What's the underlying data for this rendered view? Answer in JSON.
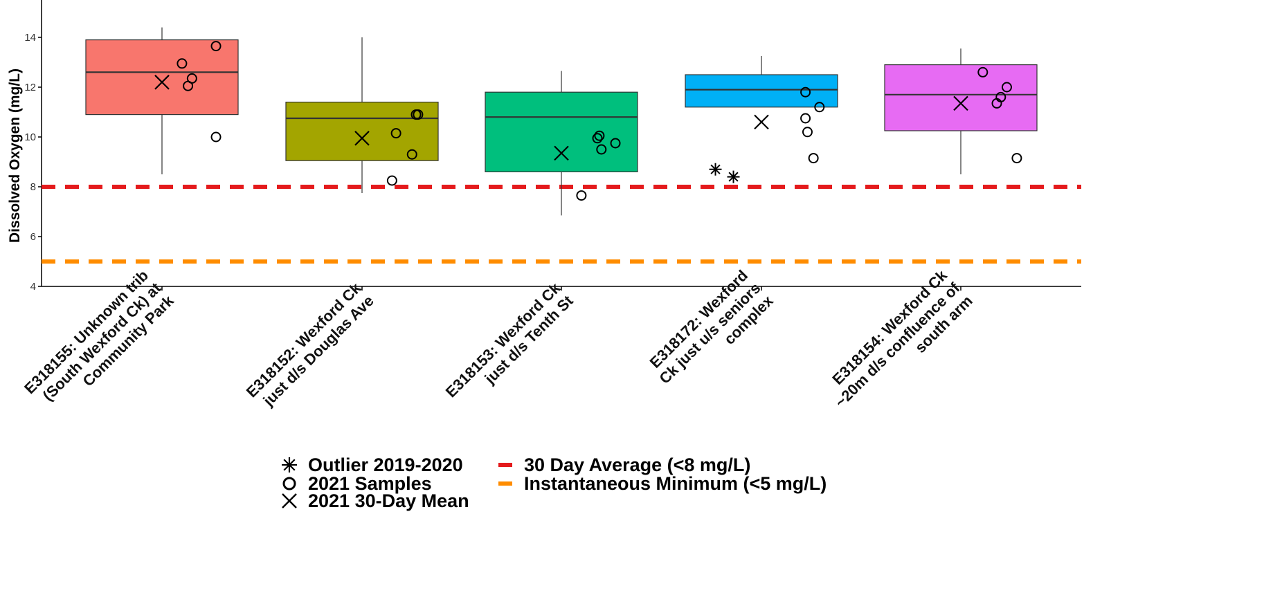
{
  "chart_data": {
    "type": "box",
    "ylabel": "Dissolved Oxygen (mg/L)",
    "ylim": [
      4,
      15.5
    ],
    "yticks": [
      4,
      6,
      8,
      10,
      12,
      14
    ],
    "grid": false,
    "legend_placement": "bottom",
    "categories": [
      "E318155: Unknown trib (South Wexford Ck) at Community Park",
      "E318152: Wexford Ck just d/s Douglas Ave",
      "E318153: Wexford Ck just d/s Tenth St",
      "E318172: Wexford Ck just u/s seniors complex",
      "E318154: Wexford Ck ~20m d/s confluence of south arm"
    ],
    "category_label_lines": [
      [
        "E318155: Unknown trib",
        "(South Wexford Ck) at",
        "Community Park"
      ],
      [
        "E318152: Wexford Ck",
        "just d/s Douglas Ave"
      ],
      [
        "E318153: Wexford Ck",
        "just d/s Tenth St"
      ],
      [
        "E318172: Wexford",
        "Ck just u/s seniors",
        "complex"
      ],
      [
        "E318154: Wexford Ck",
        "~20m d/s confluence of",
        "south arm"
      ]
    ],
    "boxes": [
      {
        "whisker_low": 8.5,
        "q1": 10.9,
        "median": 12.6,
        "q3": 13.9,
        "whisker_high": 14.4,
        "color": "#F8766D"
      },
      {
        "whisker_low": 7.75,
        "q1": 9.05,
        "median": 10.75,
        "q3": 11.4,
        "whisker_high": 14.0,
        "color": "#A3A500"
      },
      {
        "whisker_low": 6.85,
        "q1": 8.6,
        "median": 10.8,
        "q3": 11.8,
        "whisker_high": 12.65,
        "color": "#00BF7D"
      },
      {
        "whisker_low": 11.2,
        "q1": 11.2,
        "median": 11.9,
        "q3": 12.5,
        "whisker_high": 13.25,
        "color": "#00B0F6"
      },
      {
        "whisker_low": 8.5,
        "q1": 10.25,
        "median": 11.7,
        "q3": 12.9,
        "whisker_high": 13.55,
        "color": "#E76BF3"
      }
    ],
    "samples_2021": [
      [
        [
          0.27,
          13.65
        ],
        [
          0.1,
          12.95
        ],
        [
          0.15,
          12.35
        ],
        [
          0.13,
          12.05
        ],
        [
          0.27,
          10.0
        ]
      ],
      [
        [
          0.27,
          10.9
        ],
        [
          0.28,
          10.9
        ],
        [
          0.17,
          10.15
        ],
        [
          0.25,
          9.3
        ],
        [
          0.15,
          8.25
        ]
      ],
      [
        [
          0.19,
          10.05
        ],
        [
          0.18,
          9.95
        ],
        [
          0.2,
          9.5
        ],
        [
          0.27,
          9.75
        ],
        [
          0.1,
          7.65
        ]
      ],
      [
        [
          0.22,
          11.8
        ],
        [
          0.29,
          11.2
        ],
        [
          0.22,
          10.75
        ],
        [
          0.23,
          10.2
        ],
        [
          0.26,
          9.15
        ]
      ],
      [
        [
          0.11,
          12.6
        ],
        [
          0.23,
          12.0
        ],
        [
          0.2,
          11.6
        ],
        [
          0.18,
          11.35
        ],
        [
          0.28,
          9.15
        ]
      ]
    ],
    "mean_30day_2021": [
      12.2,
      9.95,
      9.35,
      10.6,
      11.35
    ],
    "outliers_2019_2020": [
      {
        "category": 3,
        "offset": -0.23,
        "value": 8.7
      },
      {
        "category": 3,
        "offset": -0.23,
        "value": 8.4
      }
    ],
    "reference_lines": [
      {
        "value": 8,
        "color": "#E41A1C",
        "label": "30 Day Average (<8 mg/L)"
      },
      {
        "value": 5,
        "color": "#FF8C00",
        "label": "Instantaneous Minimum (<5 mg/L)"
      }
    ],
    "legend": [
      {
        "symbol": "asterisk",
        "label": "Outlier 2019-2020"
      },
      {
        "symbol": "circle",
        "label": "2021 Samples"
      },
      {
        "symbol": "cross",
        "label": "2021 30-Day Mean"
      },
      {
        "symbol": "red-dash",
        "label": "30 Day Average (<8 mg/L)"
      },
      {
        "symbol": "orange-dash",
        "label": "Instantaneous Minimum (<5 mg/L)"
      }
    ]
  }
}
